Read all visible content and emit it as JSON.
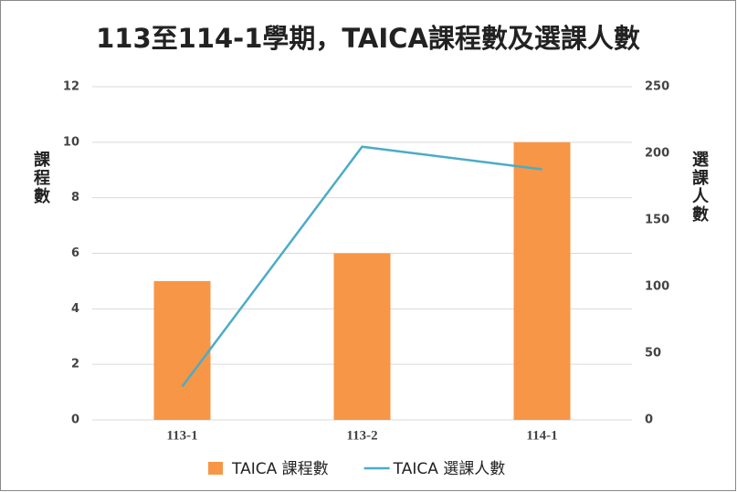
{
  "chart_data": {
    "type": "combo",
    "title": "113至114-1學期，TAICA課程數及選課人數",
    "ylabel": "課程數",
    "y2label": "選課人數",
    "categories": [
      "113-1",
      "113-2",
      "114-1"
    ],
    "series": [
      {
        "name": "TAICA 課程數",
        "color": "#f79646",
        "type": "bar",
        "values": [
          5,
          6,
          10
        ]
      },
      {
        "name": "TAICA 選課人數",
        "color": "#4bacc6",
        "type": "line",
        "axis": "y2",
        "values": [
          25,
          205,
          188
        ]
      }
    ],
    "ylim": [
      0,
      12
    ],
    "yticks": [
      0,
      2,
      4,
      6,
      8,
      10,
      12
    ],
    "y2lim": [
      0,
      250
    ],
    "y2ticks": [
      0,
      50,
      100,
      150,
      200,
      250
    ],
    "grid": true,
    "legend": "bottom"
  }
}
